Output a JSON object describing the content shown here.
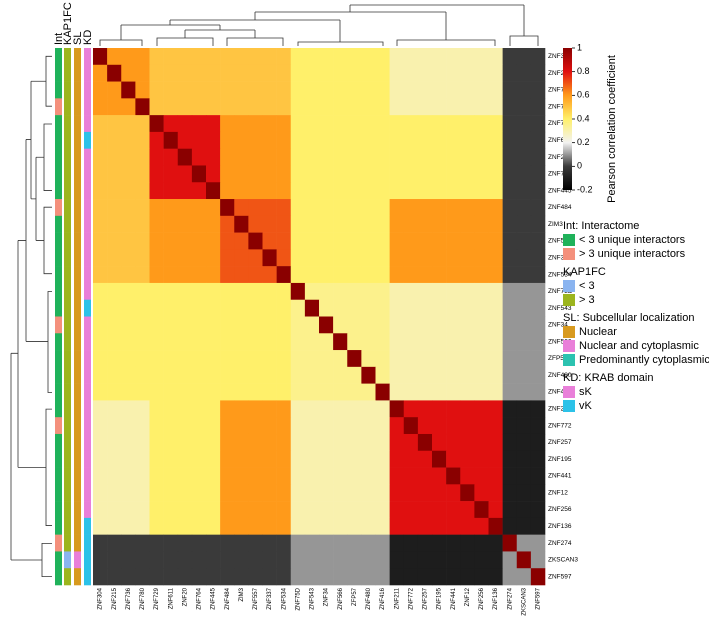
{
  "chart_data": {
    "type": "heatmap",
    "categories": [
      "ZNF304",
      "ZNF215",
      "ZNF736",
      "ZNF780",
      "ZNF729",
      "ZNF611",
      "ZNF20",
      "ZNF764",
      "ZNF445",
      "ZNF484",
      "ZIM3",
      "ZNF557",
      "ZNF337",
      "ZNF534",
      "ZNF75D",
      "ZNF543",
      "ZNF34",
      "ZNF566",
      "ZFP57",
      "ZNF480",
      "ZNF416",
      "ZNF211",
      "ZNF772",
      "ZNF257",
      "ZNF195",
      "ZNF441",
      "ZNF12",
      "ZNF256",
      "ZNF136",
      "ZNF274",
      "ZKSCAN3",
      "ZNF597"
    ],
    "values": [
      [
        1,
        0.6,
        0.6,
        0.6,
        0.5,
        0.5,
        0.5,
        0.5,
        0.5,
        0.5,
        0.5,
        0.5,
        0.5,
        0.5,
        0.4,
        0.4,
        0.4,
        0.4,
        0.4,
        0.4,
        0.4,
        0.3,
        0.3,
        0.3,
        0.3,
        0.3,
        0.3,
        0.3,
        0.3,
        0,
        0,
        0
      ],
      [
        0.6,
        1,
        0.6,
        0.6,
        0.5,
        0.5,
        0.5,
        0.5,
        0.5,
        0.5,
        0.5,
        0.5,
        0.5,
        0.5,
        0.4,
        0.4,
        0.4,
        0.4,
        0.4,
        0.4,
        0.4,
        0.3,
        0.3,
        0.3,
        0.3,
        0.3,
        0.3,
        0.3,
        0.3,
        0,
        0,
        0
      ],
      [
        0.6,
        0.6,
        1,
        0.6,
        0.5,
        0.5,
        0.5,
        0.5,
        0.5,
        0.5,
        0.5,
        0.5,
        0.5,
        0.5,
        0.4,
        0.4,
        0.4,
        0.4,
        0.4,
        0.4,
        0.4,
        0.3,
        0.3,
        0.3,
        0.3,
        0.3,
        0.3,
        0.3,
        0.3,
        0,
        0,
        0
      ],
      [
        0.6,
        0.6,
        0.6,
        1,
        0.5,
        0.5,
        0.5,
        0.5,
        0.5,
        0.5,
        0.5,
        0.5,
        0.5,
        0.5,
        0.4,
        0.4,
        0.4,
        0.4,
        0.4,
        0.4,
        0.4,
        0.3,
        0.3,
        0.3,
        0.3,
        0.3,
        0.3,
        0.3,
        0.3,
        0,
        0,
        0
      ],
      [
        0.5,
        0.5,
        0.5,
        0.5,
        1,
        0.8,
        0.8,
        0.8,
        0.8,
        0.6,
        0.6,
        0.6,
        0.6,
        0.6,
        0.4,
        0.4,
        0.4,
        0.4,
        0.4,
        0.4,
        0.4,
        0.4,
        0.4,
        0.4,
        0.4,
        0.4,
        0.4,
        0.4,
        0.4,
        0,
        0,
        0
      ],
      [
        0.5,
        0.5,
        0.5,
        0.5,
        0.8,
        1,
        0.8,
        0.8,
        0.8,
        0.6,
        0.6,
        0.6,
        0.6,
        0.6,
        0.4,
        0.4,
        0.4,
        0.4,
        0.4,
        0.4,
        0.4,
        0.4,
        0.4,
        0.4,
        0.4,
        0.4,
        0.4,
        0.4,
        0.4,
        0,
        0,
        0
      ],
      [
        0.5,
        0.5,
        0.5,
        0.5,
        0.8,
        0.8,
        1,
        0.8,
        0.8,
        0.6,
        0.6,
        0.6,
        0.6,
        0.6,
        0.4,
        0.4,
        0.4,
        0.4,
        0.4,
        0.4,
        0.4,
        0.4,
        0.4,
        0.4,
        0.4,
        0.4,
        0.4,
        0.4,
        0.4,
        0,
        0,
        0
      ],
      [
        0.5,
        0.5,
        0.5,
        0.5,
        0.8,
        0.8,
        0.8,
        1,
        0.8,
        0.6,
        0.6,
        0.6,
        0.6,
        0.6,
        0.4,
        0.4,
        0.4,
        0.4,
        0.4,
        0.4,
        0.4,
        0.4,
        0.4,
        0.4,
        0.4,
        0.4,
        0.4,
        0.4,
        0.4,
        0,
        0,
        0
      ],
      [
        0.5,
        0.5,
        0.5,
        0.5,
        0.8,
        0.8,
        0.8,
        0.8,
        1,
        0.6,
        0.6,
        0.6,
        0.6,
        0.6,
        0.4,
        0.4,
        0.4,
        0.4,
        0.4,
        0.4,
        0.4,
        0.4,
        0.4,
        0.4,
        0.4,
        0.4,
        0.4,
        0.4,
        0.4,
        0,
        0,
        0
      ],
      [
        0.5,
        0.5,
        0.5,
        0.5,
        0.6,
        0.6,
        0.6,
        0.6,
        0.6,
        1,
        0.7,
        0.7,
        0.7,
        0.7,
        0.4,
        0.4,
        0.4,
        0.4,
        0.4,
        0.4,
        0.4,
        0.6,
        0.6,
        0.6,
        0.6,
        0.6,
        0.6,
        0.6,
        0.6,
        0,
        0,
        0
      ],
      [
        0.5,
        0.5,
        0.5,
        0.5,
        0.6,
        0.6,
        0.6,
        0.6,
        0.6,
        0.7,
        1,
        0.7,
        0.7,
        0.7,
        0.4,
        0.4,
        0.4,
        0.4,
        0.4,
        0.4,
        0.4,
        0.6,
        0.6,
        0.6,
        0.6,
        0.6,
        0.6,
        0.6,
        0.6,
        0,
        0,
        0
      ],
      [
        0.5,
        0.5,
        0.5,
        0.5,
        0.6,
        0.6,
        0.6,
        0.6,
        0.6,
        0.7,
        0.7,
        1,
        0.7,
        0.7,
        0.4,
        0.4,
        0.4,
        0.4,
        0.4,
        0.4,
        0.4,
        0.6,
        0.6,
        0.6,
        0.6,
        0.6,
        0.6,
        0.6,
        0.6,
        0,
        0,
        0
      ],
      [
        0.5,
        0.5,
        0.5,
        0.5,
        0.6,
        0.6,
        0.6,
        0.6,
        0.6,
        0.7,
        0.7,
        0.7,
        1,
        0.7,
        0.4,
        0.4,
        0.4,
        0.4,
        0.4,
        0.4,
        0.4,
        0.6,
        0.6,
        0.6,
        0.6,
        0.6,
        0.6,
        0.6,
        0.6,
        0,
        0,
        0
      ],
      [
        0.5,
        0.5,
        0.5,
        0.5,
        0.6,
        0.6,
        0.6,
        0.6,
        0.6,
        0.7,
        0.7,
        0.7,
        0.7,
        1,
        0.4,
        0.4,
        0.4,
        0.4,
        0.4,
        0.4,
        0.4,
        0.6,
        0.6,
        0.6,
        0.6,
        0.6,
        0.6,
        0.6,
        0.6,
        0,
        0,
        0
      ],
      [
        0.4,
        0.4,
        0.4,
        0.4,
        0.4,
        0.4,
        0.4,
        0.4,
        0.4,
        0.4,
        0.4,
        0.4,
        0.4,
        0.4,
        1,
        0.35,
        0.35,
        0.35,
        0.35,
        0.35,
        0.35,
        0.3,
        0.3,
        0.3,
        0.3,
        0.3,
        0.3,
        0.3,
        0.3,
        0.1,
        0.1,
        0.1
      ],
      [
        0.4,
        0.4,
        0.4,
        0.4,
        0.4,
        0.4,
        0.4,
        0.4,
        0.4,
        0.4,
        0.4,
        0.4,
        0.4,
        0.4,
        0.35,
        1,
        0.35,
        0.35,
        0.35,
        0.35,
        0.35,
        0.3,
        0.3,
        0.3,
        0.3,
        0.3,
        0.3,
        0.3,
        0.3,
        0.1,
        0.1,
        0.1
      ],
      [
        0.4,
        0.4,
        0.4,
        0.4,
        0.4,
        0.4,
        0.4,
        0.4,
        0.4,
        0.4,
        0.4,
        0.4,
        0.4,
        0.4,
        0.35,
        0.35,
        1,
        0.35,
        0.35,
        0.35,
        0.35,
        0.3,
        0.3,
        0.3,
        0.3,
        0.3,
        0.3,
        0.3,
        0.3,
        0.1,
        0.1,
        0.1
      ],
      [
        0.4,
        0.4,
        0.4,
        0.4,
        0.4,
        0.4,
        0.4,
        0.4,
        0.4,
        0.4,
        0.4,
        0.4,
        0.4,
        0.4,
        0.35,
        0.35,
        0.35,
        1,
        0.35,
        0.35,
        0.35,
        0.3,
        0.3,
        0.3,
        0.3,
        0.3,
        0.3,
        0.3,
        0.3,
        0.1,
        0.1,
        0.1
      ],
      [
        0.4,
        0.4,
        0.4,
        0.4,
        0.4,
        0.4,
        0.4,
        0.4,
        0.4,
        0.4,
        0.4,
        0.4,
        0.4,
        0.4,
        0.35,
        0.35,
        0.35,
        0.35,
        1,
        0.35,
        0.35,
        0.3,
        0.3,
        0.3,
        0.3,
        0.3,
        0.3,
        0.3,
        0.3,
        0.1,
        0.1,
        0.1
      ],
      [
        0.4,
        0.4,
        0.4,
        0.4,
        0.4,
        0.4,
        0.4,
        0.4,
        0.4,
        0.4,
        0.4,
        0.4,
        0.4,
        0.4,
        0.35,
        0.35,
        0.35,
        0.35,
        0.35,
        1,
        0.35,
        0.3,
        0.3,
        0.3,
        0.3,
        0.3,
        0.3,
        0.3,
        0.3,
        0.1,
        0.1,
        0.1
      ],
      [
        0.4,
        0.4,
        0.4,
        0.4,
        0.4,
        0.4,
        0.4,
        0.4,
        0.4,
        0.4,
        0.4,
        0.4,
        0.4,
        0.4,
        0.35,
        0.35,
        0.35,
        0.35,
        0.35,
        0.35,
        1,
        0.3,
        0.3,
        0.3,
        0.3,
        0.3,
        0.3,
        0.3,
        0.3,
        0.1,
        0.1,
        0.1
      ],
      [
        0.3,
        0.3,
        0.3,
        0.3,
        0.4,
        0.4,
        0.4,
        0.4,
        0.4,
        0.6,
        0.6,
        0.6,
        0.6,
        0.6,
        0.3,
        0.3,
        0.3,
        0.3,
        0.3,
        0.3,
        0.3,
        1,
        0.8,
        0.8,
        0.8,
        0.8,
        0.8,
        0.8,
        0.8,
        -0.1,
        -0.1,
        -0.1
      ],
      [
        0.3,
        0.3,
        0.3,
        0.3,
        0.4,
        0.4,
        0.4,
        0.4,
        0.4,
        0.6,
        0.6,
        0.6,
        0.6,
        0.6,
        0.3,
        0.3,
        0.3,
        0.3,
        0.3,
        0.3,
        0.3,
        0.8,
        1,
        0.8,
        0.8,
        0.8,
        0.8,
        0.8,
        0.8,
        -0.1,
        -0.1,
        -0.1
      ],
      [
        0.3,
        0.3,
        0.3,
        0.3,
        0.4,
        0.4,
        0.4,
        0.4,
        0.4,
        0.6,
        0.6,
        0.6,
        0.6,
        0.6,
        0.3,
        0.3,
        0.3,
        0.3,
        0.3,
        0.3,
        0.3,
        0.8,
        0.8,
        1,
        0.8,
        0.8,
        0.8,
        0.8,
        0.8,
        -0.1,
        -0.1,
        -0.1
      ],
      [
        0.3,
        0.3,
        0.3,
        0.3,
        0.4,
        0.4,
        0.4,
        0.4,
        0.4,
        0.6,
        0.6,
        0.6,
        0.6,
        0.6,
        0.3,
        0.3,
        0.3,
        0.3,
        0.3,
        0.3,
        0.3,
        0.8,
        0.8,
        0.8,
        1,
        0.8,
        0.8,
        0.8,
        0.8,
        -0.1,
        -0.1,
        -0.1
      ],
      [
        0.3,
        0.3,
        0.3,
        0.3,
        0.4,
        0.4,
        0.4,
        0.4,
        0.4,
        0.6,
        0.6,
        0.6,
        0.6,
        0.6,
        0.3,
        0.3,
        0.3,
        0.3,
        0.3,
        0.3,
        0.3,
        0.8,
        0.8,
        0.8,
        0.8,
        1,
        0.8,
        0.8,
        0.8,
        -0.1,
        -0.1,
        -0.1
      ],
      [
        0.3,
        0.3,
        0.3,
        0.3,
        0.4,
        0.4,
        0.4,
        0.4,
        0.4,
        0.6,
        0.6,
        0.6,
        0.6,
        0.6,
        0.3,
        0.3,
        0.3,
        0.3,
        0.3,
        0.3,
        0.3,
        0.8,
        0.8,
        0.8,
        0.8,
        0.8,
        1,
        0.8,
        0.8,
        -0.1,
        -0.1,
        -0.1
      ],
      [
        0.3,
        0.3,
        0.3,
        0.3,
        0.4,
        0.4,
        0.4,
        0.4,
        0.4,
        0.6,
        0.6,
        0.6,
        0.6,
        0.6,
        0.3,
        0.3,
        0.3,
        0.3,
        0.3,
        0.3,
        0.3,
        0.8,
        0.8,
        0.8,
        0.8,
        0.8,
        0.8,
        1,
        0.8,
        -0.1,
        -0.1,
        -0.1
      ],
      [
        0.3,
        0.3,
        0.3,
        0.3,
        0.4,
        0.4,
        0.4,
        0.4,
        0.4,
        0.6,
        0.6,
        0.6,
        0.6,
        0.6,
        0.3,
        0.3,
        0.3,
        0.3,
        0.3,
        0.3,
        0.3,
        0.8,
        0.8,
        0.8,
        0.8,
        0.8,
        0.8,
        0.8,
        1,
        -0.1,
        -0.1,
        -0.1
      ],
      [
        0,
        0,
        0,
        0,
        0,
        0,
        0,
        0,
        0,
        0,
        0,
        0,
        0,
        0,
        0.1,
        0.1,
        0.1,
        0.1,
        0.1,
        0.1,
        0.1,
        -0.1,
        -0.1,
        -0.1,
        -0.1,
        -0.1,
        -0.1,
        -0.1,
        -0.1,
        1,
        0.1,
        0.1
      ],
      [
        0,
        0,
        0,
        0,
        0,
        0,
        0,
        0,
        0,
        0,
        0,
        0,
        0,
        0,
        0.1,
        0.1,
        0.1,
        0.1,
        0.1,
        0.1,
        0.1,
        -0.1,
        -0.1,
        -0.1,
        -0.1,
        -0.1,
        -0.1,
        -0.1,
        -0.1,
        0.1,
        1,
        0.1
      ],
      [
        0,
        0,
        0,
        0,
        0,
        0,
        0,
        0,
        0,
        0,
        0,
        0,
        0,
        0,
        0.1,
        0.1,
        0.1,
        0.1,
        0.1,
        0.1,
        0.1,
        -0.1,
        -0.1,
        -0.1,
        -0.1,
        -0.1,
        -0.1,
        -0.1,
        -0.1,
        0.1,
        0.1,
        1
      ]
    ],
    "zlim": [
      -0.2,
      1
    ],
    "colorscale": [
      "#000000",
      "#3a3a3a",
      "#f2f2f2",
      "#fff06a",
      "#ff9a1a",
      "#e01010",
      "#8a0000"
    ],
    "colorbar": {
      "title": "Pearson correlation coefficient",
      "ticks": [
        1,
        0.8,
        0.6,
        0.4,
        0.2,
        0,
        -0.2
      ]
    },
    "row_annotations": [
      {
        "name": "Int",
        "colors": [
          "#1fb25a",
          "#1fb25a",
          "#1fb25a",
          "#f4907c",
          "#1fb25a",
          "#1fb25a",
          "#1fb25a",
          "#1fb25a",
          "#1fb25a",
          "#f4907c",
          "#1fb25a",
          "#1fb25a",
          "#1fb25a",
          "#1fb25a",
          "#1fb25a",
          "#1fb25a",
          "#f4907c",
          "#1fb25a",
          "#1fb25a",
          "#1fb25a",
          "#1fb25a",
          "#1fb25a",
          "#f4907c",
          "#1fb25a",
          "#1fb25a",
          "#1fb25a",
          "#1fb25a",
          "#1fb25a",
          "#1fb25a",
          "#f4907c",
          "#1fb25a",
          "#1fb25a"
        ]
      },
      {
        "name": "KAP1FC",
        "colors": [
          "#9cb51e",
          "#9cb51e",
          "#9cb51e",
          "#9cb51e",
          "#9cb51e",
          "#9cb51e",
          "#9cb51e",
          "#9cb51e",
          "#9cb51e",
          "#9cb51e",
          "#9cb51e",
          "#9cb51e",
          "#9cb51e",
          "#9cb51e",
          "#9cb51e",
          "#9cb51e",
          "#9cb51e",
          "#9cb51e",
          "#9cb51e",
          "#9cb51e",
          "#9cb51e",
          "#9cb51e",
          "#9cb51e",
          "#9cb51e",
          "#9cb51e",
          "#9cb51e",
          "#9cb51e",
          "#9cb51e",
          "#9cb51e",
          "#9cb51e",
          "#8ab4f0",
          "#9cb51e"
        ]
      },
      {
        "name": "SL",
        "colors": [
          "#d89a1e",
          "#d89a1e",
          "#d89a1e",
          "#d89a1e",
          "#d89a1e",
          "#d89a1e",
          "#d89a1e",
          "#d89a1e",
          "#d89a1e",
          "#d89a1e",
          "#d89a1e",
          "#d89a1e",
          "#d89a1e",
          "#d89a1e",
          "#d89a1e",
          "#d89a1e",
          "#d89a1e",
          "#d89a1e",
          "#d89a1e",
          "#d89a1e",
          "#d89a1e",
          "#d89a1e",
          "#d89a1e",
          "#d89a1e",
          "#d89a1e",
          "#d89a1e",
          "#d89a1e",
          "#d89a1e",
          "#d89a1e",
          "#d89a1e",
          "#e97fd9",
          "#d89a1e"
        ]
      },
      {
        "name": "KD",
        "colors": [
          "#e97fd9",
          "#e97fd9",
          "#e97fd9",
          "#e97fd9",
          "#e97fd9",
          "#2cc2e8",
          "#e97fd9",
          "#e97fd9",
          "#e97fd9",
          "#e97fd9",
          "#e97fd9",
          "#e97fd9",
          "#e97fd9",
          "#e97fd9",
          "#e97fd9",
          "#2cc2e8",
          "#e97fd9",
          "#e97fd9",
          "#e97fd9",
          "#e97fd9",
          "#e97fd9",
          "#e97fd9",
          "#e97fd9",
          "#e97fd9",
          "#e97fd9",
          "#e97fd9",
          "#e97fd9",
          "#e97fd9",
          "#2cc2e8",
          "#2cc2e8",
          "#2cc2e8",
          "#2cc2e8"
        ]
      }
    ],
    "legend": [
      {
        "title": "Int: Interactome",
        "items": [
          {
            "label": "< 3 unique interactors",
            "color": "#1fb25a"
          },
          {
            "label": "> 3 unique interactors",
            "color": "#f4907c"
          }
        ]
      },
      {
        "title": "KAP1FC",
        "items": [
          {
            "label": "< 3",
            "color": "#8ab4f0"
          },
          {
            "label": "> 3",
            "color": "#9cb51e"
          }
        ]
      },
      {
        "title": "SL: Subcellular localization",
        "items": [
          {
            "label": "Nuclear",
            "color": "#d89a1e"
          },
          {
            "label": "Nuclear and cytoplasmic",
            "color": "#e97fd9"
          },
          {
            "label": "Predominantly cytoplasmic",
            "color": "#2cc2b0"
          }
        ]
      },
      {
        "title": "KD: KRAB domain",
        "items": [
          {
            "label": "sK",
            "color": "#e97fd9"
          },
          {
            "label": "vK",
            "color": "#2cc2e8"
          }
        ]
      }
    ]
  }
}
